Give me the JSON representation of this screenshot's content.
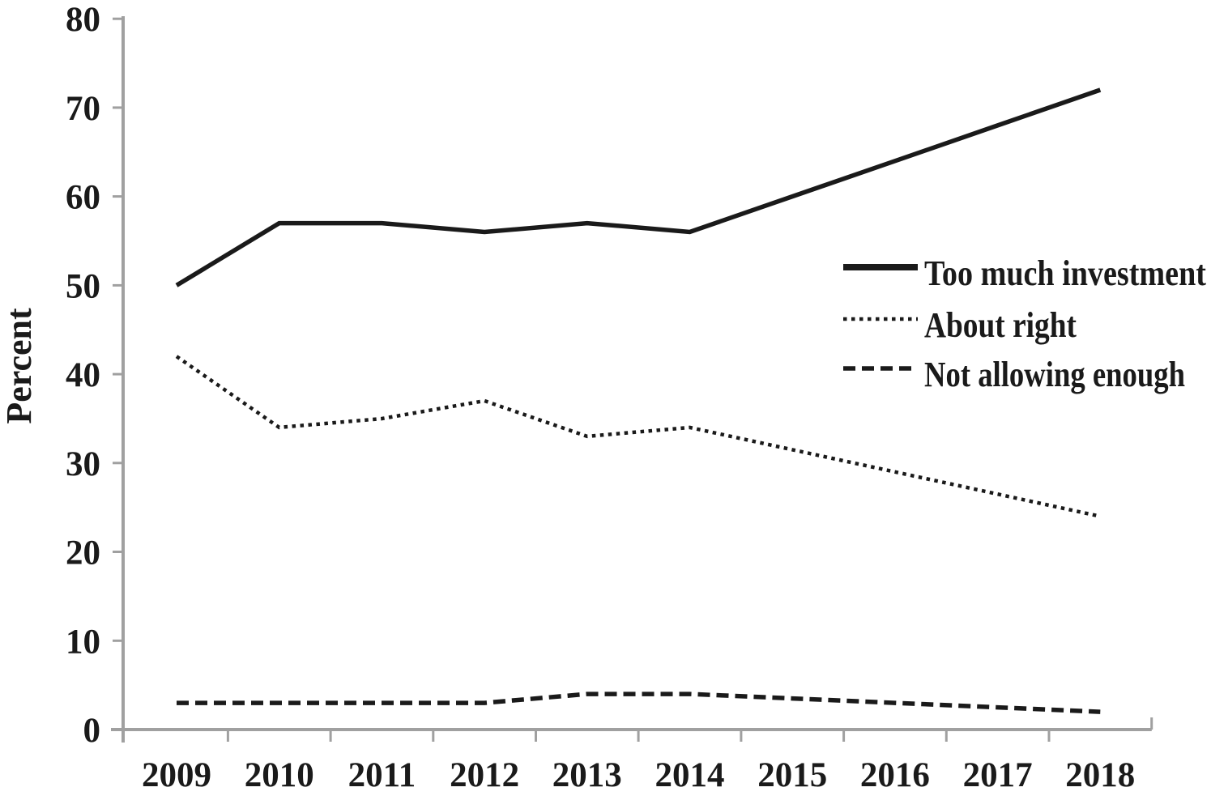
{
  "chart_data": {
    "type": "line",
    "title": "",
    "xlabel": "",
    "ylabel": "Percent",
    "x": [
      2009,
      2010,
      2011,
      2012,
      2013,
      2014,
      2015,
      2016,
      2017,
      2018
    ],
    "ylim": [
      0,
      80
    ],
    "yticks": [
      0,
      10,
      20,
      30,
      40,
      50,
      60,
      70,
      80
    ],
    "grid": false,
    "legend_position": "right-middle",
    "axis_color": "#a0a0a0",
    "text_color": "#1a1a1a",
    "line_color": "#1a1a1a",
    "series": [
      {
        "name": "Too much investment",
        "line_style": "solid",
        "color": "#1a1a1a",
        "values": [
          50,
          57,
          57,
          56,
          57,
          56,
          60,
          64,
          68,
          72
        ]
      },
      {
        "name": "About right",
        "line_style": "dotted",
        "color": "#1a1a1a",
        "values": [
          42,
          34,
          35,
          37,
          33,
          34,
          31.5,
          29,
          26.5,
          24
        ]
      },
      {
        "name": "Not allowing enough",
        "line_style": "dashed",
        "color": "#1a1a1a",
        "values": [
          3,
          3,
          3,
          3,
          4,
          4,
          3.5,
          3,
          2.5,
          2
        ]
      }
    ]
  }
}
